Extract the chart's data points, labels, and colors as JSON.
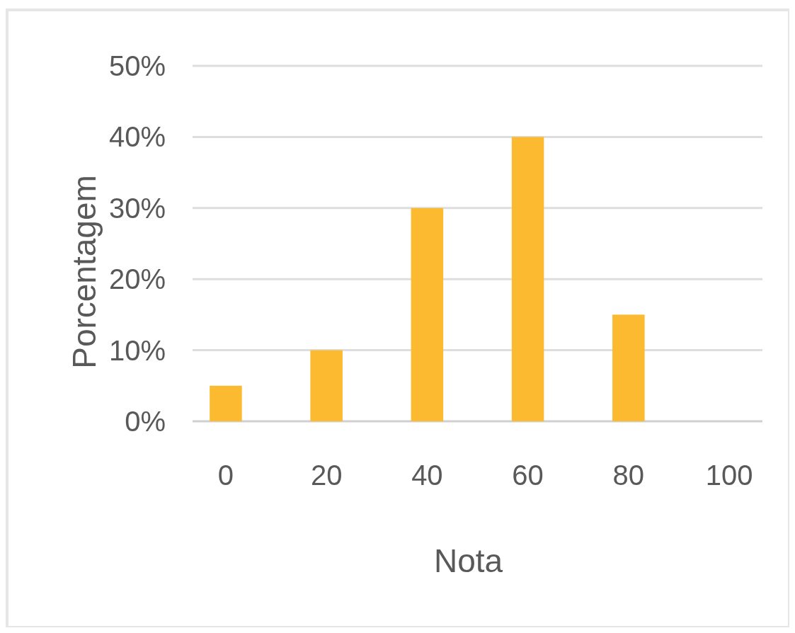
{
  "chart_data": {
    "type": "bar",
    "xlabel": "Nota",
    "ylabel": "Porcentagem",
    "categories": [
      "0",
      "20",
      "40",
      "60",
      "80",
      "100"
    ],
    "values": [
      5,
      10,
      30,
      40,
      15,
      0
    ],
    "color": "#fbba2f",
    "ylim": [
      0,
      50
    ],
    "yticks": [
      {
        "value": 0,
        "label": "0%"
      },
      {
        "value": 10,
        "label": "10%"
      },
      {
        "value": 20,
        "label": "20%"
      },
      {
        "value": 30,
        "label": "30%"
      },
      {
        "value": 40,
        "label": "40%"
      },
      {
        "value": 50,
        "label": "50%"
      }
    ],
    "grid": "y"
  }
}
